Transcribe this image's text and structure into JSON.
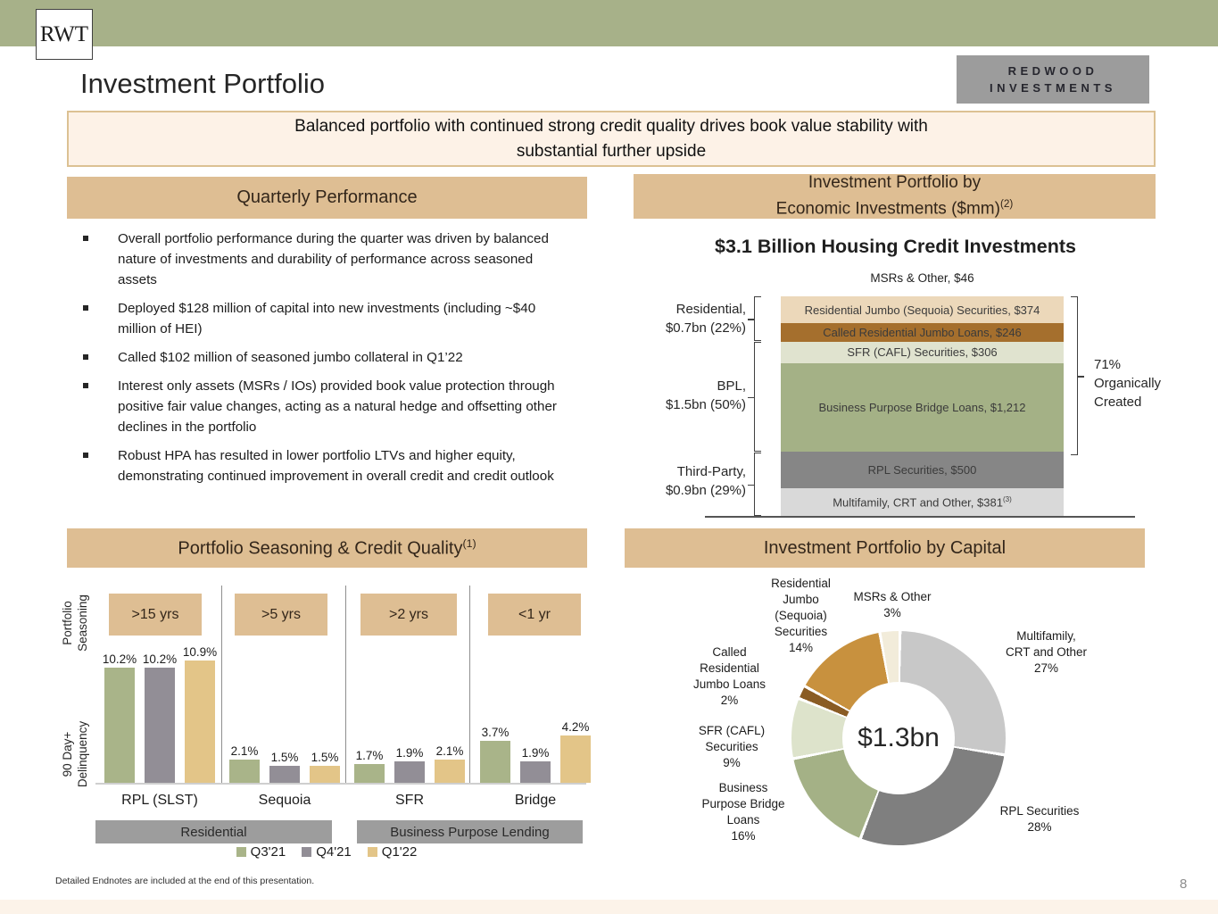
{
  "brand": {
    "logo_short": "RWT",
    "logo_line1": "REDWOOD",
    "logo_line2": "INVESTMENTS"
  },
  "title": "Investment Portfolio",
  "headline": "Balanced portfolio with continued strong credit quality drives book value stability with\nsubstantial further upside",
  "sections": {
    "quarterly": {
      "header": "Quarterly Performance",
      "bullets": [
        "Overall portfolio performance during the quarter was driven by balanced nature of investments and durability of performance across seasoned assets",
        "Deployed $128 million of capital into new investments (including ~$40 million of HEI)",
        "Called $102 million of seasoned jumbo collateral in Q1’22",
        "Interest only assets (MSRs / IOs) provided book value protection through positive fair value changes, acting as a natural hedge and offsetting other declines in the portfolio",
        "Robust HPA has resulted in lower portfolio LTVs and higher equity, demonstrating continued improvement in overall credit and credit outlook"
      ]
    },
    "econ": {
      "header_line1": "Investment Portfolio by",
      "header_line2": "Economic Investments ($mm)",
      "header_sup": "(2)"
    },
    "seasoning": {
      "header": "Portfolio Seasoning & Credit Quality",
      "header_sup": "(1)"
    },
    "capital": {
      "header": "Investment Portfolio by Capital"
    }
  },
  "chart_data": [
    {
      "id": "economic-investments-stack",
      "type": "bar",
      "stacked": true,
      "title": "$3.1 Billion Housing Credit Investments",
      "unit": "$mm",
      "top_label": "MSRs & Other, $46",
      "segments": [
        {
          "label": "Residential Jumbo (Sequoia) Securities, $374",
          "value": 374,
          "color": "#ecd8ba"
        },
        {
          "label": "Called Residential Jumbo Loans, $246",
          "value": 246,
          "color": "#a56f2d"
        },
        {
          "label": "SFR (CAFL) Securities, $306",
          "value": 306,
          "color": "#e0e3cf"
        },
        {
          "label": "Business Purpose Bridge Loans, $1,212",
          "value": 1212,
          "color": "#a4b186"
        },
        {
          "label": "RPL Securities, $500",
          "value": 500,
          "color": "#868686"
        },
        {
          "label": "Multifamily, CRT and Other, $381",
          "sup": "(3)",
          "value": 381,
          "color": "#d9d9d9"
        }
      ],
      "brackets": {
        "residential": "Residential,\n$0.7bn (22%)",
        "bpl": "BPL,\n$1.5bn (50%)",
        "third_party": "Third-Party,\n$0.9bn (29%)",
        "organic": "71%\nOrganically\nCreated"
      }
    },
    {
      "id": "seasoning-delinquency",
      "type": "bar",
      "ylabel_top": "Portfolio\nSeasoning",
      "ylabel_bottom": "90 Day+\nDelinquency",
      "seasoning_boxes": [
        ">15 yrs",
        ">5 yrs",
        ">2 yrs",
        "<1 yr"
      ],
      "categories": [
        "RPL (SLST)",
        "Sequoia",
        "SFR",
        "Bridge"
      ],
      "series": [
        {
          "name": "Q3'21",
          "color": "#a9b489"
        },
        {
          "name": "Q4'21",
          "color": "#928e96"
        },
        {
          "name": "Q1'22",
          "color": "#e3c588"
        }
      ],
      "groups": [
        {
          "name": "RPL (SLST)",
          "values": [
            10.2,
            10.2,
            10.9
          ]
        },
        {
          "name": "Sequoia",
          "values": [
            2.1,
            1.5,
            1.5
          ]
        },
        {
          "name": "SFR",
          "values": [
            1.7,
            1.9,
            2.1
          ]
        },
        {
          "name": "Bridge",
          "values": [
            3.7,
            1.9,
            4.2
          ]
        }
      ],
      "sectors": [
        "Residential",
        "Business Purpose Lending"
      ],
      "value_suffix": "%"
    },
    {
      "id": "portfolio-by-capital",
      "type": "pie",
      "center_label": "$1.3bn",
      "slices": [
        {
          "name": "Multifamily, CRT and Other",
          "pct": 27,
          "color": "#c8c8c8"
        },
        {
          "name": "RPL Securities",
          "pct": 28,
          "color": "#7f7f7f"
        },
        {
          "name": "Business Purpose Bridge Loans",
          "pct": 16,
          "color": "#a4b186"
        },
        {
          "name": "SFR (CAFL) Securities",
          "pct": 9,
          "color": "#dde3cb"
        },
        {
          "name": "Called Residential Jumbo Loans",
          "pct": 2,
          "color": "#8a5c24"
        },
        {
          "name": "Residential Jumbo (Sequoia) Securities",
          "pct": 14,
          "color": "#c8913e"
        },
        {
          "name": "MSRs & Other",
          "pct": 3,
          "color": "#f2ecda"
        }
      ],
      "callouts": {
        "sequoia": "Residential\nJumbo\n(Sequoia)\nSecurities\n14%",
        "msrs": "MSRs & Other\n3%",
        "multifamily": "Multifamily,\nCRT and Other\n27%",
        "called": "Called\nResidential\nJumbo Loans\n2%",
        "sfr": "SFR (CAFL)\nSecurities\n9%",
        "bridge": "Business\nPurpose Bridge\nLoans\n16%",
        "rpl": "RPL Securities\n28%"
      }
    }
  ],
  "footer": {
    "footnote": "Detailed Endnotes are included at the end of this presentation.",
    "page_number": "8"
  }
}
